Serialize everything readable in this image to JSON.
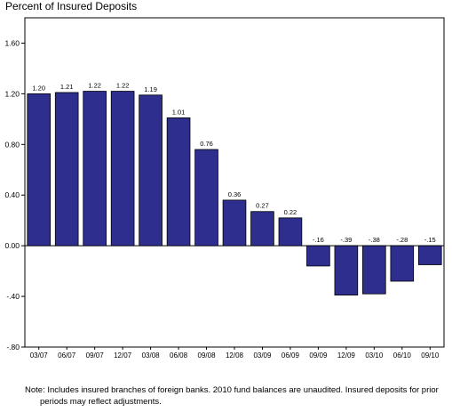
{
  "chart_data": {
    "type": "bar",
    "title": "Percent of Insured Deposits",
    "categories": [
      "03/07",
      "06/07",
      "09/07",
      "12/07",
      "03/08",
      "06/08",
      "09/08",
      "12/08",
      "03/09",
      "06/09",
      "09/09",
      "12/09",
      "03/10",
      "06/10",
      "09/10"
    ],
    "values": [
      1.2,
      1.21,
      1.22,
      1.22,
      1.19,
      1.01,
      0.76,
      0.36,
      0.27,
      0.22,
      -0.16,
      -0.39,
      -0.38,
      -0.28,
      -0.15
    ],
    "value_labels": [
      "1.20",
      "1.21",
      "1.22",
      "1.22",
      "1.19",
      "1.01",
      "0.76",
      "0.36",
      "0.27",
      "0.22",
      "-.16",
      "-.39",
      "-.38",
      "-.28",
      "-.15"
    ],
    "ylim": [
      -0.8,
      1.8
    ],
    "yticks": [
      -0.8,
      -0.4,
      0.0,
      0.4,
      0.8,
      1.2,
      1.6
    ],
    "ytick_labels": [
      "-.80",
      "-.40",
      "0.00",
      "0.40",
      "0.80",
      "1.20",
      "1.60"
    ],
    "bar_color": "#2e2e8e",
    "xlabel": "",
    "ylabel": "",
    "grid": false,
    "legend": "none"
  },
  "note": {
    "line1": "Note: Includes insured branches of foreign banks. 2010 fund balances are unaudited. Insured deposits for prior",
    "line2": "periods may reflect adjustments."
  }
}
